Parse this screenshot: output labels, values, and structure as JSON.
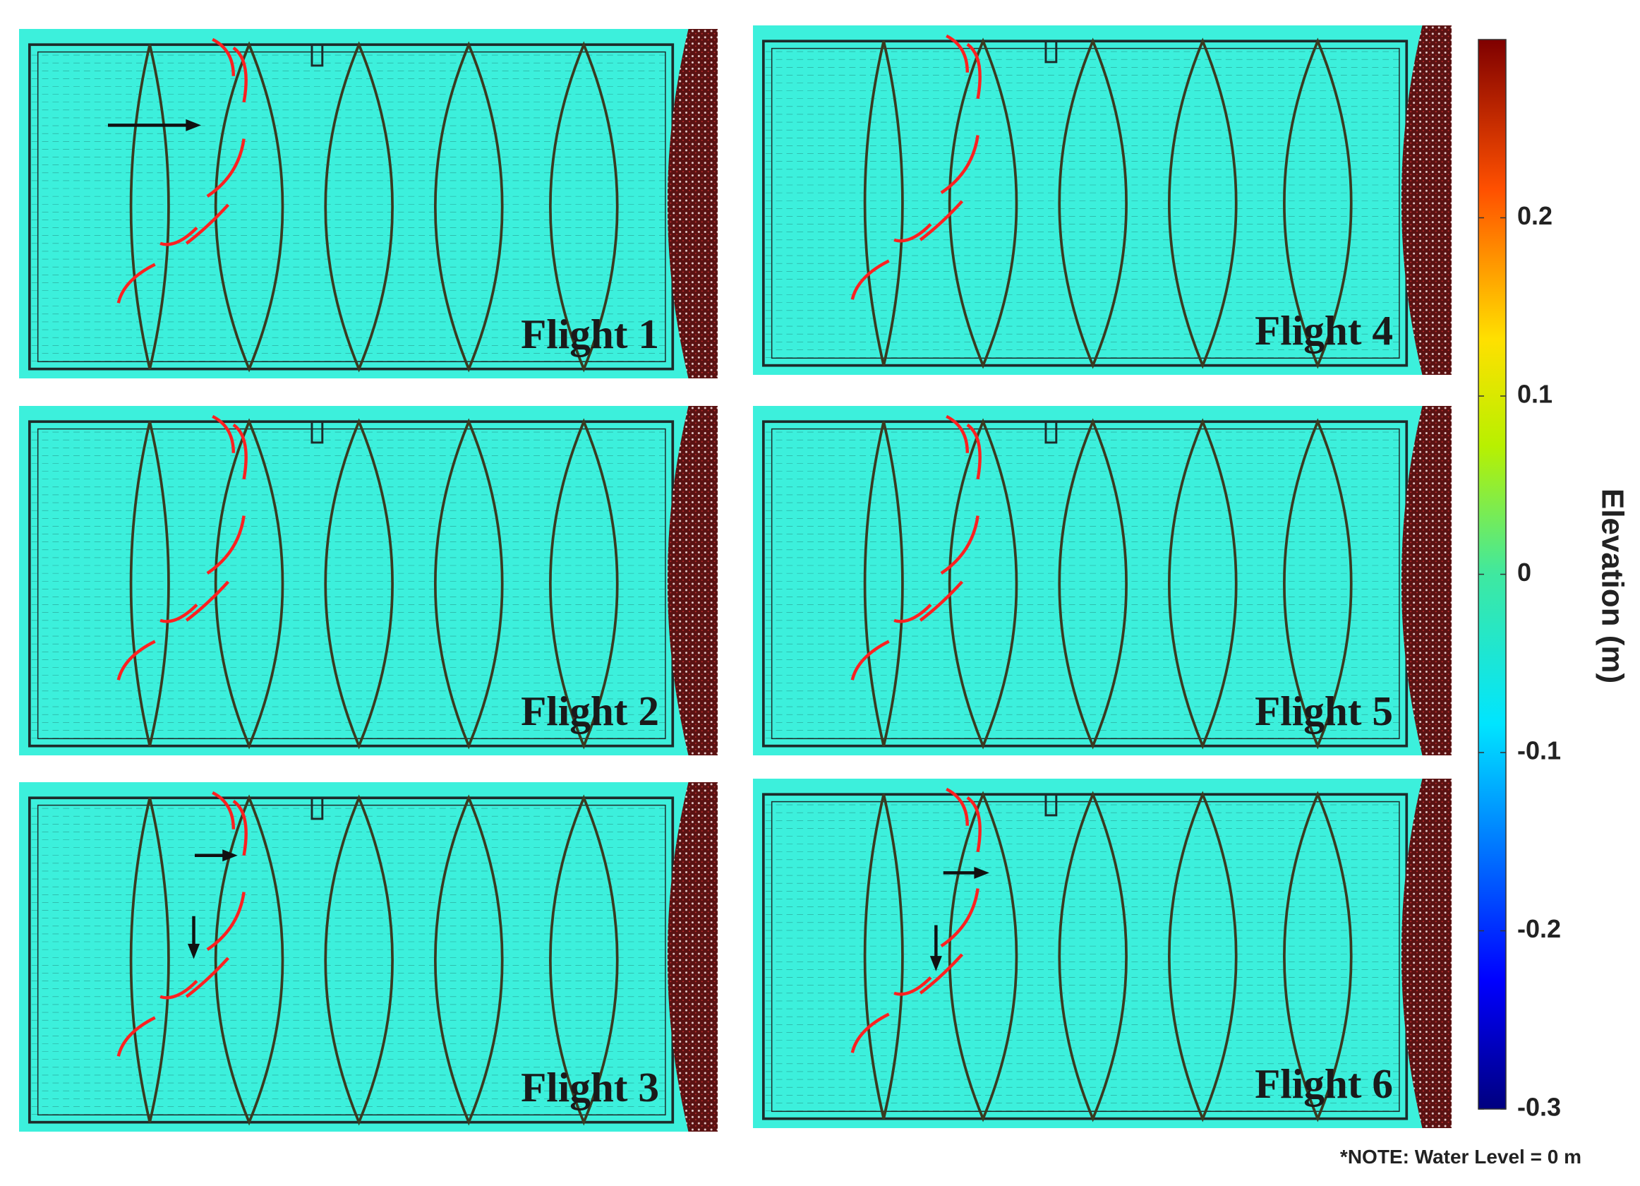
{
  "panels": [
    {
      "label": "Flight 1"
    },
    {
      "label": "Flight 2"
    },
    {
      "label": "Flight 3"
    },
    {
      "label": "Flight 4"
    },
    {
      "label": "Flight 5"
    },
    {
      "label": "Flight 6"
    }
  ],
  "colorbar": {
    "label": "Elevation (m)",
    "lim": [
      -0.3,
      0.3
    ],
    "ticks": [
      0.2,
      0.1,
      0,
      -0.1,
      -0.2,
      -0.3
    ]
  },
  "note": "*NOTE: Water Level = 0 m"
}
